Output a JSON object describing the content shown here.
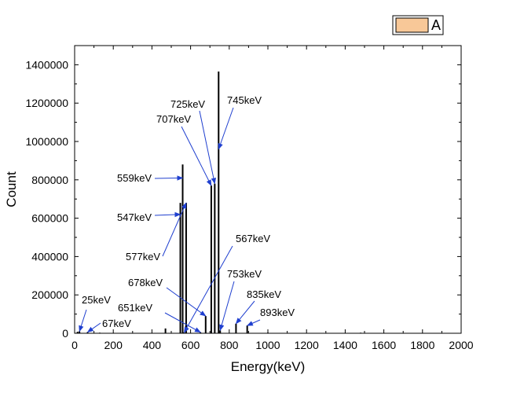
{
  "chart_data": {
    "type": "bar",
    "xlabel": "Energy(keV)",
    "ylabel": "Count",
    "xlim": [
      0,
      2000
    ],
    "ylim": [
      0,
      1500000
    ],
    "x_ticks": [
      0,
      200,
      400,
      600,
      800,
      1000,
      1200,
      1400,
      1600,
      1800,
      2000
    ],
    "y_ticks": [
      0,
      200000,
      400000,
      600000,
      800000,
      1000000,
      1200000,
      1400000
    ],
    "grid": false,
    "legend_position": "top-right",
    "series": [
      {
        "name": "A",
        "color": "#f8c898",
        "points": [
          {
            "x": 15,
            "y": 8000
          },
          {
            "x": 25,
            "y": 10000
          },
          {
            "x": 67,
            "y": 6000
          },
          {
            "x": 130,
            "y": 3000
          },
          {
            "x": 470,
            "y": 25000
          },
          {
            "x": 547,
            "y": 680000
          },
          {
            "x": 559,
            "y": 880000
          },
          {
            "x": 567,
            "y": 4000
          },
          {
            "x": 577,
            "y": 680000
          },
          {
            "x": 651,
            "y": 5000
          },
          {
            "x": 678,
            "y": 90000
          },
          {
            "x": 707,
            "y": 770000
          },
          {
            "x": 725,
            "y": 780000
          },
          {
            "x": 745,
            "y": 1365000
          },
          {
            "x": 753,
            "y": 15000
          },
          {
            "x": 835,
            "y": 50000
          },
          {
            "x": 893,
            "y": 40000
          },
          {
            "x": 1000,
            "y": 3000
          },
          {
            "x": 1200,
            "y": 2000
          },
          {
            "x": 1480,
            "y": 3000
          },
          {
            "x": 1540,
            "y": 2000
          }
        ]
      }
    ],
    "annotations": [
      {
        "text": "25keV",
        "x": 25,
        "y": 10000
      },
      {
        "text": "67keV",
        "x": 67,
        "y": 6000
      },
      {
        "text": "651keV",
        "x": 651,
        "y": 5000
      },
      {
        "text": "678keV",
        "x": 678,
        "y": 90000
      },
      {
        "text": "577keV",
        "x": 577,
        "y": 680000
      },
      {
        "text": "547keV",
        "x": 547,
        "y": 620000
      },
      {
        "text": "559keV",
        "x": 559,
        "y": 810000
      },
      {
        "text": "707keV",
        "x": 707,
        "y": 770000
      },
      {
        "text": "725keV",
        "x": 725,
        "y": 780000
      },
      {
        "text": "745keV",
        "x": 745,
        "y": 960000
      },
      {
        "text": "567keV",
        "x": 567,
        "y": 4000
      },
      {
        "text": "753keV",
        "x": 753,
        "y": 15000
      },
      {
        "text": "835keV",
        "x": 835,
        "y": 50000
      },
      {
        "text": "893keV",
        "x": 893,
        "y": 40000
      }
    ],
    "annotation_arrow_color": "#1f3fcf"
  }
}
